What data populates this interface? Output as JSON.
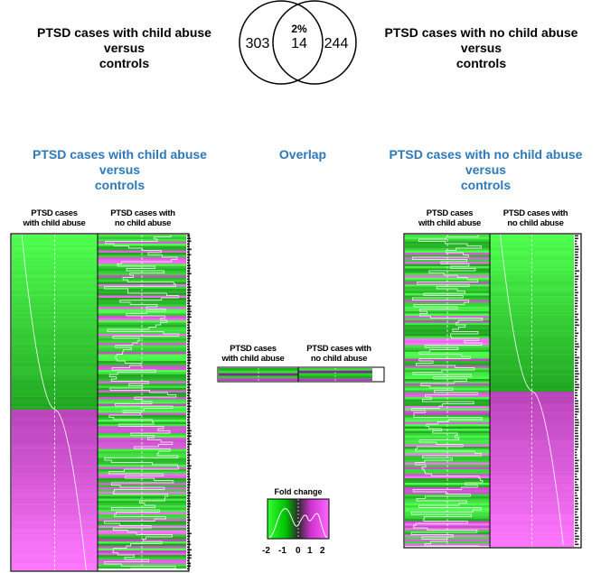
{
  "top": {
    "left_label": [
      "PTSD cases with child abuse",
      "versus",
      "controls"
    ],
    "right_label": [
      "PTSD cases with no child abuse",
      "versus",
      "controls"
    ],
    "venn": {
      "left_count": "303",
      "overlap_count": "14",
      "right_count": "244",
      "overlap_percent": "2%"
    }
  },
  "sections": {
    "left_title": [
      "PTSD cases with child abuse",
      "versus",
      "controls"
    ],
    "middle_title": "Overlap",
    "right_title": [
      "PTSD cases with no child abuse",
      "versus",
      "controls"
    ]
  },
  "heatmaps": {
    "left": {
      "col1": [
        "PTSD cases",
        "with child abuse"
      ],
      "col2": [
        "PTSD cases with",
        "no child abuse"
      ]
    },
    "overlap": {
      "col1": [
        "PTSD cases",
        "with child abuse"
      ],
      "col2": [
        "PTSD cases with",
        "no child abuse"
      ]
    },
    "right": {
      "col1": [
        "PTSD cases",
        "with child abuse"
      ],
      "col2": [
        "PTSD cases with",
        "no child abuse"
      ]
    }
  },
  "legend": {
    "title": "Fold change",
    "ticks": [
      "-2",
      "-1",
      "0",
      "1",
      "2"
    ],
    "colors": {
      "low": "#00c000",
      "mid": "#2a2a2a",
      "high": "#cc33cc",
      "bright_green": "#33ff33",
      "bright_magenta": "#ff66ff"
    }
  }
}
